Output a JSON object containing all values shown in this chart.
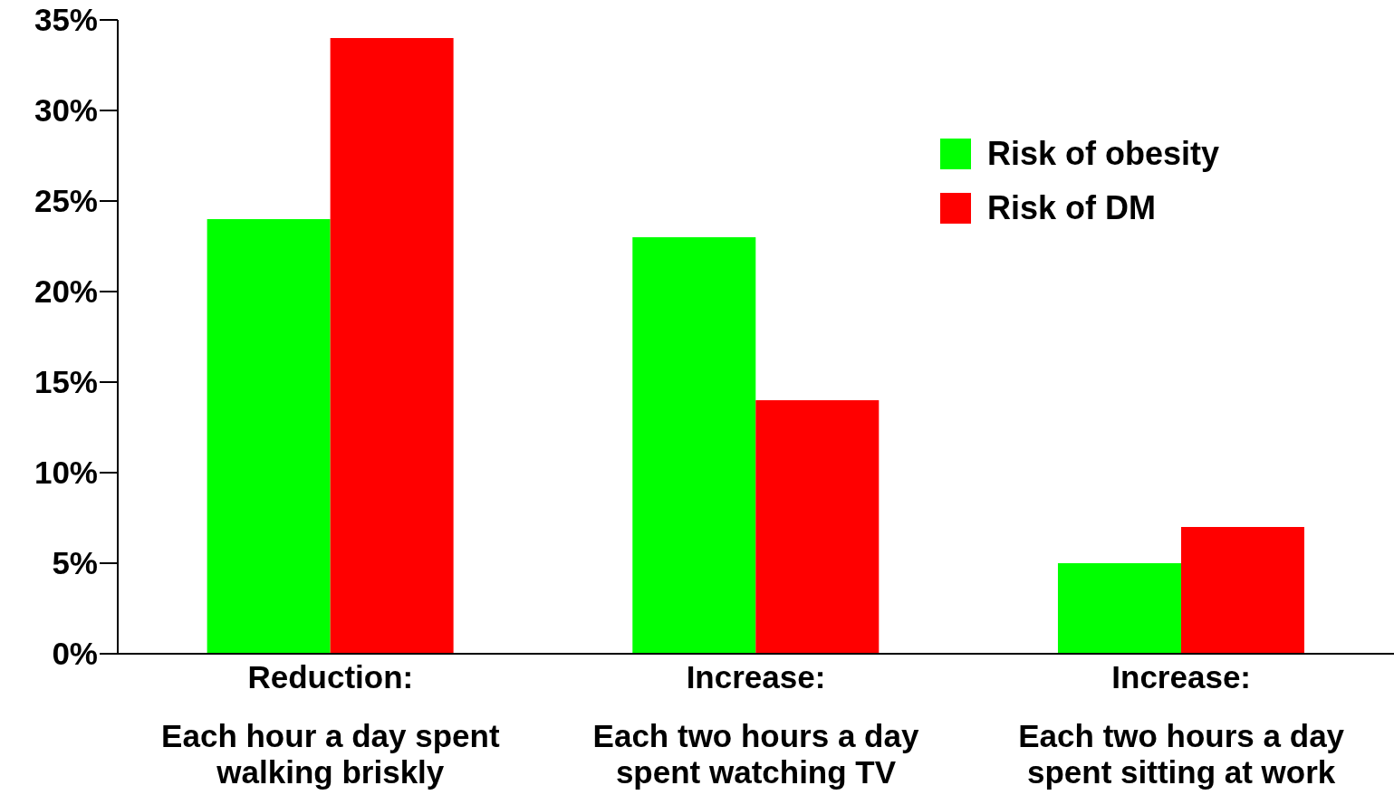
{
  "chart_data": {
    "type": "bar",
    "categories": [
      "Reduction:\n\nEach hour a day spent\nwalking briskly",
      "Increase:\n\nEach two hours a day\nspent watching TV",
      "Increase:\n\nEach two hours a day\nspent sitting at work"
    ],
    "series": [
      {
        "name": "Risk of obesity",
        "color": "#00ff00",
        "values": [
          24,
          23,
          5
        ]
      },
      {
        "name": "Risk of DM",
        "color": "#ff0000",
        "values": [
          34,
          14,
          7
        ]
      }
    ],
    "ylim": [
      0,
      35
    ],
    "yticks": [
      {
        "value": 0,
        "label": "0%"
      },
      {
        "value": 5,
        "label": "5%"
      },
      {
        "value": 10,
        "label": "10%"
      },
      {
        "value": 15,
        "label": "15%"
      },
      {
        "value": 20,
        "label": "20%"
      },
      {
        "value": 25,
        "label": "25%"
      },
      {
        "value": 30,
        "label": "30%"
      },
      {
        "value": 35,
        "label": "35%"
      }
    ],
    "grid": false,
    "legend": "top right"
  }
}
